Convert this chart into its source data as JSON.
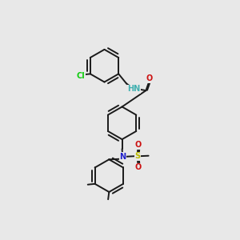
{
  "bg_color": "#e8e8e8",
  "bond_color": "#1a1a1a",
  "bond_lw": 1.4,
  "dbl_off": 0.016,
  "r_hex": 0.088,
  "colors": {
    "N_amide": "#40b0b0",
    "N_sulf": "#2020cc",
    "O": "#cc1111",
    "Cl": "#11cc11",
    "S": "#bbbb00",
    "bond": "#1a1a1a"
  },
  "fs": 7.0
}
